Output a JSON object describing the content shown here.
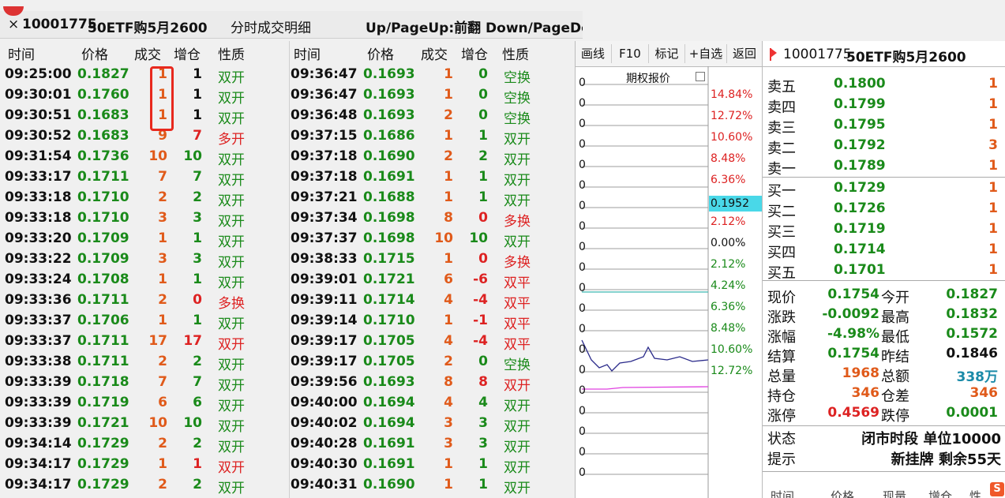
{
  "window": {
    "close": "×",
    "code": "10001775",
    "name": "50ETF购5月2600",
    "title": "分时成交明细",
    "hint": "Up/PageUp:前翻  Down/PageDo"
  },
  "headers": [
    "时间",
    "价格",
    "成交",
    "增仓",
    "性质"
  ],
  "left_rows": [
    {
      "time": "09:25:00",
      "price": "0.1827",
      "vol": "1",
      "oi": "1",
      "oi_color": "black",
      "nature": "双开",
      "nature_color": "green"
    },
    {
      "time": "09:30:01",
      "price": "0.1760",
      "vol": "1",
      "oi": "1",
      "oi_color": "black",
      "nature": "双开",
      "nature_color": "green"
    },
    {
      "time": "09:30:51",
      "price": "0.1683",
      "vol": "1",
      "oi": "1",
      "oi_color": "black",
      "nature": "双开",
      "nature_color": "green"
    },
    {
      "time": "09:30:52",
      "price": "0.1683",
      "vol": "9",
      "oi": "7",
      "oi_color": "red",
      "nature": "多开",
      "nature_color": "red"
    },
    {
      "time": "09:31:54",
      "price": "0.1736",
      "vol": "10",
      "oi": "10",
      "oi_color": "green",
      "nature": "双开",
      "nature_color": "green"
    },
    {
      "time": "09:33:17",
      "price": "0.1711",
      "vol": "7",
      "oi": "7",
      "oi_color": "green",
      "nature": "双开",
      "nature_color": "green"
    },
    {
      "time": "09:33:18",
      "price": "0.1710",
      "vol": "2",
      "oi": "2",
      "oi_color": "green",
      "nature": "双开",
      "nature_color": "green"
    },
    {
      "time": "09:33:18",
      "price": "0.1710",
      "vol": "3",
      "oi": "3",
      "oi_color": "green",
      "nature": "双开",
      "nature_color": "green"
    },
    {
      "time": "09:33:20",
      "price": "0.1709",
      "vol": "1",
      "oi": "1",
      "oi_color": "green",
      "nature": "双开",
      "nature_color": "green"
    },
    {
      "time": "09:33:22",
      "price": "0.1709",
      "vol": "3",
      "oi": "3",
      "oi_color": "green",
      "nature": "双开",
      "nature_color": "green"
    },
    {
      "time": "09:33:24",
      "price": "0.1708",
      "vol": "1",
      "oi": "1",
      "oi_color": "green",
      "nature": "双开",
      "nature_color": "green"
    },
    {
      "time": "09:33:36",
      "price": "0.1711",
      "vol": "2",
      "oi": "0",
      "oi_color": "red",
      "nature": "多换",
      "nature_color": "red"
    },
    {
      "time": "09:33:37",
      "price": "0.1706",
      "vol": "1",
      "oi": "1",
      "oi_color": "green",
      "nature": "双开",
      "nature_color": "green"
    },
    {
      "time": "09:33:37",
      "price": "0.1711",
      "vol": "17",
      "oi": "17",
      "oi_color": "red",
      "nature": "双开",
      "nature_color": "red"
    },
    {
      "time": "09:33:38",
      "price": "0.1711",
      "vol": "2",
      "oi": "2",
      "oi_color": "green",
      "nature": "双开",
      "nature_color": "green"
    },
    {
      "time": "09:33:39",
      "price": "0.1718",
      "vol": "7",
      "oi": "7",
      "oi_color": "green",
      "nature": "双开",
      "nature_color": "green"
    },
    {
      "time": "09:33:39",
      "price": "0.1719",
      "vol": "6",
      "oi": "6",
      "oi_color": "green",
      "nature": "双开",
      "nature_color": "green"
    },
    {
      "time": "09:33:39",
      "price": "0.1721",
      "vol": "10",
      "oi": "10",
      "oi_color": "green",
      "nature": "双开",
      "nature_color": "green"
    },
    {
      "time": "09:34:14",
      "price": "0.1729",
      "vol": "2",
      "oi": "2",
      "oi_color": "green",
      "nature": "双开",
      "nature_color": "green"
    },
    {
      "time": "09:34:17",
      "price": "0.1729",
      "vol": "1",
      "oi": "1",
      "oi_color": "red",
      "nature": "双开",
      "nature_color": "red"
    },
    {
      "time": "09:34:17",
      "price": "0.1729",
      "vol": "2",
      "oi": "2",
      "oi_color": "green",
      "nature": "双开",
      "nature_color": "green"
    }
  ],
  "right_rows": [
    {
      "time": "09:36:47",
      "price": "0.1693",
      "vol": "1",
      "oi": "0",
      "oi_color": "green",
      "nature": "空换",
      "nature_color": "green"
    },
    {
      "time": "09:36:47",
      "price": "0.1693",
      "vol": "1",
      "oi": "0",
      "oi_color": "green",
      "nature": "空换",
      "nature_color": "green"
    },
    {
      "time": "09:36:48",
      "price": "0.1693",
      "vol": "2",
      "oi": "0",
      "oi_color": "green",
      "nature": "空换",
      "nature_color": "green"
    },
    {
      "time": "09:37:15",
      "price": "0.1686",
      "vol": "1",
      "oi": "1",
      "oi_color": "green",
      "nature": "双开",
      "nature_color": "green"
    },
    {
      "time": "09:37:18",
      "price": "0.1690",
      "vol": "2",
      "oi": "2",
      "oi_color": "green",
      "nature": "双开",
      "nature_color": "green"
    },
    {
      "time": "09:37:18",
      "price": "0.1691",
      "vol": "1",
      "oi": "1",
      "oi_color": "green",
      "nature": "双开",
      "nature_color": "green"
    },
    {
      "time": "09:37:21",
      "price": "0.1688",
      "vol": "1",
      "oi": "1",
      "oi_color": "green",
      "nature": "双开",
      "nature_color": "green"
    },
    {
      "time": "09:37:34",
      "price": "0.1698",
      "vol": "8",
      "oi": "0",
      "oi_color": "red",
      "nature": "多换",
      "nature_color": "red"
    },
    {
      "time": "09:37:37",
      "price": "0.1698",
      "vol": "10",
      "oi": "10",
      "oi_color": "green",
      "nature": "双开",
      "nature_color": "green"
    },
    {
      "time": "09:38:33",
      "price": "0.1715",
      "vol": "1",
      "oi": "0",
      "oi_color": "red",
      "nature": "多换",
      "nature_color": "red"
    },
    {
      "time": "09:39:01",
      "price": "0.1721",
      "vol": "6",
      "oi": "-6",
      "oi_color": "red",
      "nature": "双平",
      "nature_color": "red"
    },
    {
      "time": "09:39:11",
      "price": "0.1714",
      "vol": "4",
      "oi": "-4",
      "oi_color": "red",
      "nature": "双平",
      "nature_color": "red"
    },
    {
      "time": "09:39:14",
      "price": "0.1710",
      "vol": "1",
      "oi": "-1",
      "oi_color": "red",
      "nature": "双平",
      "nature_color": "red"
    },
    {
      "time": "09:39:17",
      "price": "0.1705",
      "vol": "4",
      "oi": "-4",
      "oi_color": "red",
      "nature": "双平",
      "nature_color": "red"
    },
    {
      "time": "09:39:17",
      "price": "0.1705",
      "vol": "2",
      "oi": "0",
      "oi_color": "green",
      "nature": "空换",
      "nature_color": "green"
    },
    {
      "time": "09:39:56",
      "price": "0.1693",
      "vol": "8",
      "oi": "8",
      "oi_color": "red",
      "nature": "双开",
      "nature_color": "red"
    },
    {
      "time": "09:40:00",
      "price": "0.1694",
      "vol": "4",
      "oi": "4",
      "oi_color": "green",
      "nature": "双开",
      "nature_color": "green"
    },
    {
      "time": "09:40:02",
      "price": "0.1694",
      "vol": "3",
      "oi": "3",
      "oi_color": "green",
      "nature": "双开",
      "nature_color": "green"
    },
    {
      "time": "09:40:28",
      "price": "0.1691",
      "vol": "3",
      "oi": "3",
      "oi_color": "green",
      "nature": "双开",
      "nature_color": "green"
    },
    {
      "time": "09:40:30",
      "price": "0.1691",
      "vol": "1",
      "oi": "1",
      "oi_color": "green",
      "nature": "双开",
      "nature_color": "green"
    },
    {
      "time": "09:40:31",
      "price": "0.1690",
      "vol": "1",
      "oi": "1",
      "oi_color": "green",
      "nature": "双开",
      "nature_color": "green"
    }
  ],
  "toolbar": [
    "画线",
    "F10",
    "标记",
    "+自选",
    "返回"
  ],
  "chart": {
    "title": "期权报价",
    "axis_labels": [
      "14.84%",
      "12.72%",
      "10.60%",
      "8.48%",
      "6.36%",
      "4.24%",
      "2.12%",
      "0.00%",
      "2.12%",
      "4.24%",
      "6.36%",
      "8.48%",
      "10.60%",
      "12.72%"
    ],
    "current_price": "0.1952",
    "zero_char": "0"
  },
  "quote": {
    "code": "10001775",
    "name": "50ETF购5月2600",
    "asks": [
      {
        "label": "卖五",
        "price": "0.1800",
        "vol": "1"
      },
      {
        "label": "卖四",
        "price": "0.1799",
        "vol": "1"
      },
      {
        "label": "卖三",
        "price": "0.1795",
        "vol": "1"
      },
      {
        "label": "卖二",
        "price": "0.1792",
        "vol": "3"
      },
      {
        "label": "卖一",
        "price": "0.1789",
        "vol": "1"
      }
    ],
    "bids": [
      {
        "label": "买一",
        "price": "0.1729",
        "vol": "1"
      },
      {
        "label": "买二",
        "price": "0.1726",
        "vol": "1"
      },
      {
        "label": "买三",
        "price": "0.1719",
        "vol": "1"
      },
      {
        "label": "买四",
        "price": "0.1714",
        "vol": "1"
      },
      {
        "label": "买五",
        "price": "0.1701",
        "vol": "1"
      }
    ],
    "stats": [
      {
        "l1": "现价",
        "v1": "0.1754",
        "c1": "green",
        "l2": "今开",
        "v2": "0.1827",
        "c2": "green"
      },
      {
        "l1": "涨跌",
        "v1": "-0.0092",
        "c1": "green",
        "l2": "最高",
        "v2": "0.1832",
        "c2": "green"
      },
      {
        "l1": "涨幅",
        "v1": "-4.98%",
        "c1": "green",
        "l2": "最低",
        "v2": "0.1572",
        "c2": "green"
      },
      {
        "l1": "结算",
        "v1": "0.1754",
        "c1": "green",
        "l2": "昨结",
        "v2": "0.1846",
        "c2": "black"
      },
      {
        "l1": "总量",
        "v1": "1968",
        "c1": "orange",
        "l2": "总额",
        "v2": "338万",
        "c2": "teal"
      },
      {
        "l1": "持仓",
        "v1": "346",
        "c1": "orange",
        "l2": "仓差",
        "v2": "346",
        "c2": "orange"
      },
      {
        "l1": "涨停",
        "v1": "0.4569",
        "c1": "red",
        "l2": "跌停",
        "v2": "0.0001",
        "c2": "green"
      }
    ],
    "status_label": "状态",
    "status_value": "闭市时段 单位10000",
    "hint_label": "提示",
    "hint_value": "新挂牌 剩余55天",
    "bottom_headers": [
      "时间",
      "价格",
      "现量",
      "增仓",
      "性"
    ]
  },
  "colors": {
    "green": "#1a8a1a",
    "red": "#dd2222",
    "orange": "#e05a1a",
    "teal": "#1a8aa8",
    "black": "#111111",
    "highlight": "#e8291e"
  }
}
